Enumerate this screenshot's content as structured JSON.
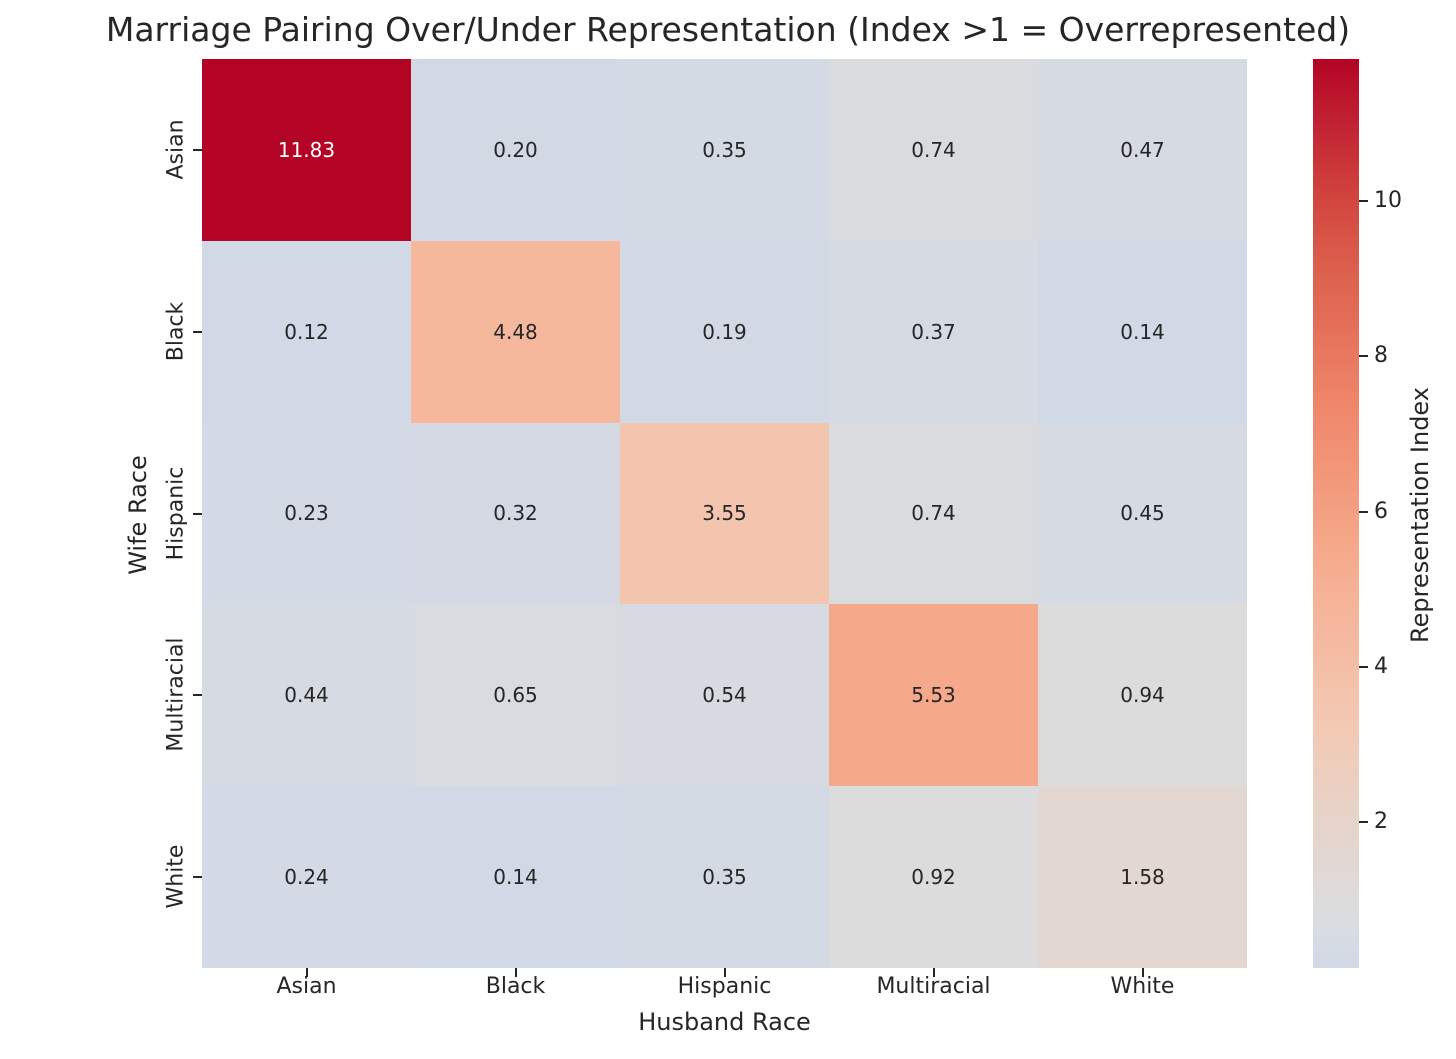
{
  "chart_data": {
    "type": "heatmap",
    "title": "Marriage Pairing Over/Under Representation (Index >1 = Overrepresented)",
    "xlabel": "Husband Race",
    "ylabel": "Wife Race",
    "x_categories": [
      "Asian",
      "Black",
      "Hispanic",
      "Multiracial",
      "White"
    ],
    "y_categories": [
      "Asian",
      "Black",
      "Hispanic",
      "Multiracial",
      "White"
    ],
    "matrix": [
      [
        11.83,
        0.2,
        0.35,
        0.74,
        0.47
      ],
      [
        0.12,
        4.48,
        0.19,
        0.37,
        0.14
      ],
      [
        0.23,
        0.32,
        3.55,
        0.74,
        0.45
      ],
      [
        0.44,
        0.65,
        0.54,
        5.53,
        0.94
      ],
      [
        0.24,
        0.14,
        0.35,
        0.92,
        1.58
      ]
    ],
    "value_decimals": 2,
    "annotations_grid": true,
    "legend_position": "right-colorbar",
    "colorbar": {
      "label": "Representation Index",
      "ticks": [
        2,
        4,
        6,
        8,
        10
      ]
    },
    "scale": {
      "vmin": 0.12,
      "vmax": 11.83,
      "center": 1
    },
    "colormap": {
      "name": "coolwarm",
      "stops": [
        "#3b4cc0",
        "#5977e3",
        "#7b9ff9",
        "#9ebeff",
        "#c0d4f5",
        "#dddcdc",
        "#f2cab5",
        "#f7ac8e",
        "#ee8468",
        "#d65244",
        "#b40426"
      ]
    },
    "colors": {
      "annotation_dark": "#262626",
      "annotation_light": "#ffffff",
      "axis_text": "#262626",
      "background": "#ffffff",
      "max_cell": "#b40426",
      "min_cell": "#d1d9e6"
    }
  }
}
